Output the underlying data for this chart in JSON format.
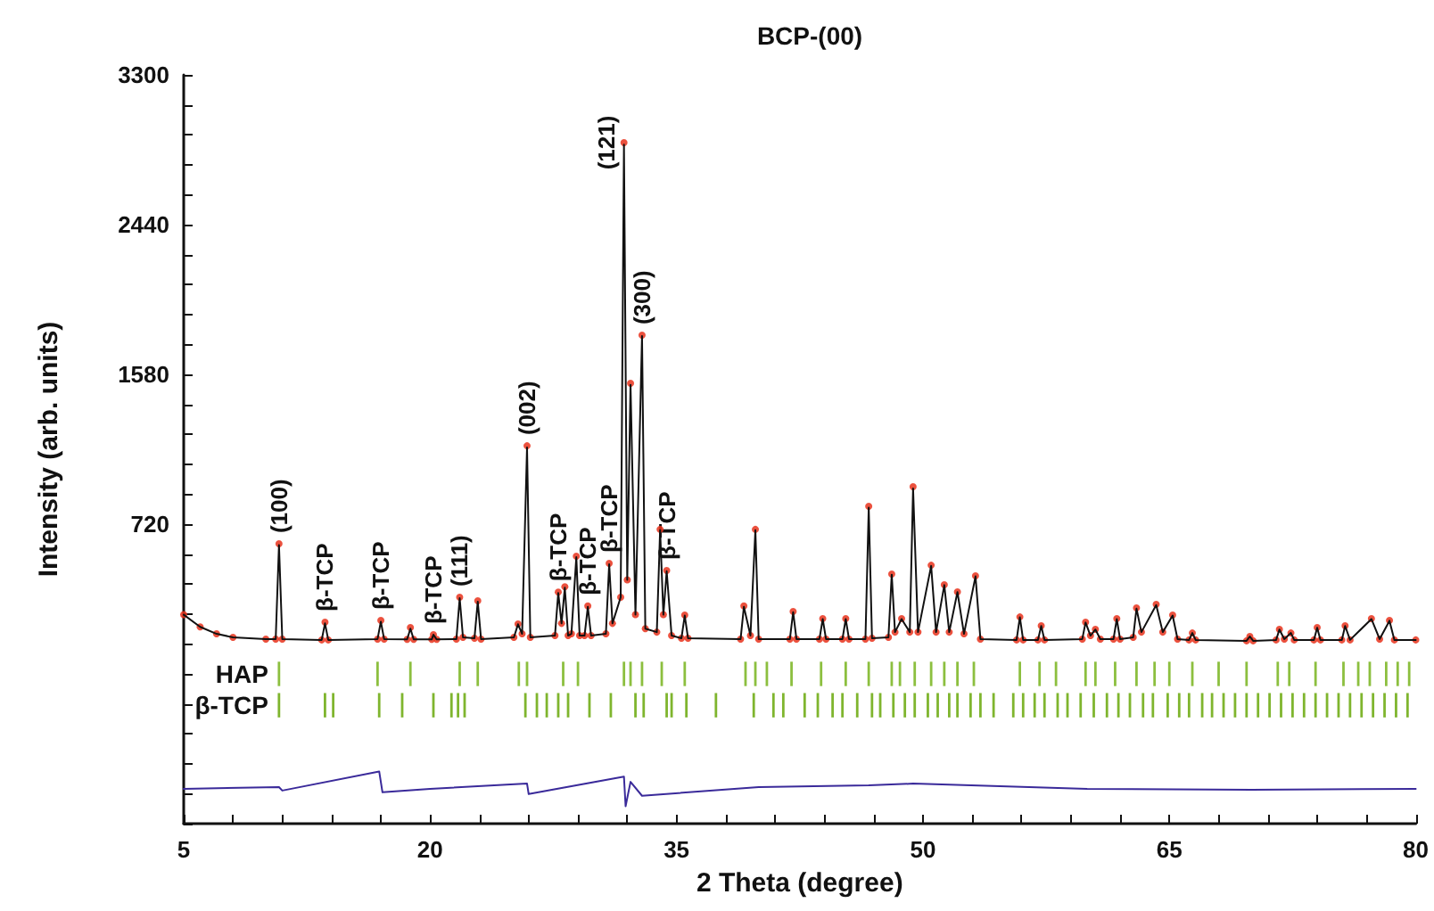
{
  "chart_data": {
    "type": "line",
    "title": "BCP-(00)",
    "xlabel": "2 Theta (degree)",
    "ylabel": "Intensity (arb. units)",
    "xlim": [
      5,
      80
    ],
    "xticks": [
      5,
      {
        "value": 8,
        "label": null
      },
      {
        "value": 11,
        "label": null
      },
      {
        "value": 14,
        "label": null
      },
      {
        "value": 17,
        "label": null
      },
      20,
      {
        "value": 23,
        "label": null
      },
      {
        "value": 26,
        "label": null
      },
      {
        "value": 29,
        "label": null
      },
      {
        "value": 32,
        "label": null
      },
      35,
      {
        "value": 38,
        "label": null
      },
      {
        "value": 41,
        "label": null
      },
      {
        "value": 44,
        "label": null
      },
      {
        "value": 47,
        "label": null
      },
      50,
      {
        "value": 53,
        "label": null
      },
      {
        "value": 56,
        "label": null
      },
      {
        "value": 59,
        "label": null
      },
      {
        "value": 62,
        "label": null
      },
      65,
      {
        "value": 68,
        "label": null
      },
      {
        "value": 71,
        "label": null
      },
      {
        "value": 74,
        "label": null
      },
      {
        "value": 77,
        "label": null
      },
      80
    ],
    "ylim": [
      -1000,
      3300
    ],
    "yticks": [
      {
        "value": -1000,
        "label": null
      },
      {
        "value": -828,
        "label": null
      },
      {
        "value": -656,
        "label": null
      },
      {
        "value": -484,
        "label": null
      },
      {
        "value": -312,
        "label": null
      },
      {
        "value": -140,
        "label": null
      },
      {
        "value": 32,
        "label": null
      },
      {
        "value": 204,
        "label": null
      },
      {
        "value": 376,
        "label": null
      },
      {
        "value": 548,
        "label": null
      },
      720,
      {
        "value": 892,
        "label": null
      },
      {
        "value": 1064,
        "label": null
      },
      {
        "value": 1236,
        "label": null
      },
      {
        "value": 1408,
        "label": null
      },
      1580,
      {
        "value": 1752,
        "label": null
      },
      {
        "value": 1924,
        "label": null
      },
      {
        "value": 2096,
        "label": null
      },
      {
        "value": 2268,
        "label": null
      },
      2440,
      {
        "value": 2612,
        "label": null
      },
      {
        "value": 2784,
        "label": null
      },
      {
        "value": 2956,
        "label": null
      },
      {
        "value": 3128,
        "label": null
      },
      3300
    ],
    "grid": false,
    "legend": "left",
    "series": [
      {
        "type": "scatter",
        "marker": "circle",
        "color": "#e8331c",
        "x": [
          5,
          6,
          7,
          8,
          10,
          10.6,
          10.8,
          11.0,
          13.4,
          13.6,
          13.8,
          16.8,
          17.0,
          17.2,
          18.6,
          18.8,
          19.0,
          20.1,
          20.2,
          20.4,
          21.6,
          21.8,
          22.0,
          22.7,
          22.9,
          23.1,
          25.1,
          25.35,
          25.6,
          25.9,
          26.1,
          27.6,
          27.8,
          28.0,
          28.2,
          28.4,
          28.6,
          28.9,
          29.1,
          29.4,
          29.6,
          29.8,
          30.7,
          30.9,
          31.1,
          31.6,
          31.8,
          32.0,
          32.2,
          32.5,
          32.9,
          33.1,
          33.8,
          34.0,
          34.2,
          34.4,
          34.7,
          35.3,
          35.5,
          35.7,
          38.9,
          39.1,
          39.5,
          39.8,
          40.0,
          41.9,
          42.1,
          42.3,
          43.7,
          43.9,
          44.1,
          45.1,
          45.3,
          45.5,
          46.5,
          46.7,
          46.9,
          47.9,
          48.1,
          48.3,
          48.7,
          49.2,
          49.4,
          49.7,
          50.5,
          50.8,
          51.3,
          51.6,
          52.1,
          52.5,
          53.2,
          53.5,
          55.7,
          55.9,
          56.1,
          57.0,
          57.2,
          57.4,
          59.7,
          59.9,
          60.2,
          60.5,
          60.8,
          61.6,
          61.8,
          62.0,
          62.8,
          63.0,
          63.3,
          64.2,
          64.6,
          65.2,
          65.5,
          66.2,
          66.4,
          66.6,
          69.7,
          69.9,
          70.1,
          71.5,
          71.7,
          72.0,
          72.4,
          72.6,
          73.8,
          74.0,
          74.2,
          75.5,
          75.7,
          76.0,
          77.3,
          77.8,
          78.4,
          78.7,
          80
        ],
        "values": [
          200,
          130,
          90,
          70,
          60,
          60,
          607,
          60,
          55,
          157,
          55,
          60,
          167,
          60,
          58,
          126,
          58,
          58,
          85,
          58,
          60,
          300,
          70,
          65,
          280,
          60,
          70,
          147,
          90,
          1170,
          70,
          80,
          330,
          150,
          360,
          80,
          90,
          536,
          80,
          80,
          250,
          80,
          90,
          495,
          150,
          300,
          2911,
          400,
          1529,
          200,
          1805,
          120,
          100,
          690,
          200,
          454,
          80,
          65,
          198,
          65,
          60,
          250,
          80,
          690,
          60,
          60,
          218,
          60,
          60,
          177,
          60,
          60,
          177,
          60,
          60,
          822,
          65,
          70,
          433,
          100,
          177,
          100,
          935,
          100,
          484,
          100,
          372,
          100,
          331,
          90,
          423,
          60,
          55,
          187,
          55,
          55,
          136,
          55,
          60,
          157,
          80,
          116,
          60,
          60,
          177,
          60,
          70,
          239,
          100,
          259,
          100,
          198,
          60,
          55,
          95,
          55,
          50,
          75,
          50,
          55,
          116,
          60,
          95,
          55,
          55,
          126,
          55,
          55,
          136,
          55,
          177,
          60,
          167,
          55,
          55
        ]
      },
      {
        "marker": "none",
        "color": "#111111",
        "x": [
          5,
          6,
          7,
          8,
          10,
          10.6,
          10.8,
          11.0,
          13.4,
          13.6,
          13.8,
          16.8,
          17.0,
          17.2,
          18.6,
          18.8,
          19.0,
          20.1,
          20.2,
          20.4,
          21.6,
          21.8,
          22.0,
          22.7,
          22.9,
          23.1,
          25.1,
          25.35,
          25.6,
          25.9,
          26.1,
          27.6,
          27.8,
          28.0,
          28.2,
          28.4,
          28.6,
          28.9,
          29.1,
          29.4,
          29.6,
          29.8,
          30.7,
          30.9,
          31.1,
          31.6,
          31.8,
          32.0,
          32.2,
          32.5,
          32.9,
          33.1,
          33.8,
          34.0,
          34.2,
          34.4,
          34.7,
          35.3,
          35.5,
          35.7,
          38.9,
          39.1,
          39.5,
          39.8,
          40.0,
          41.9,
          42.1,
          42.3,
          43.7,
          43.9,
          44.1,
          45.1,
          45.3,
          45.5,
          46.5,
          46.7,
          46.9,
          47.9,
          48.1,
          48.3,
          48.7,
          49.2,
          49.4,
          49.7,
          50.5,
          50.8,
          51.3,
          51.6,
          52.1,
          52.5,
          53.2,
          53.5,
          55.7,
          55.9,
          56.1,
          57.0,
          57.2,
          57.4,
          59.7,
          59.9,
          60.2,
          60.5,
          60.8,
          61.6,
          61.8,
          62.0,
          62.8,
          63.0,
          63.3,
          64.2,
          64.6,
          65.2,
          65.5,
          66.2,
          66.4,
          66.6,
          69.7,
          69.9,
          70.1,
          71.5,
          71.7,
          72.0,
          72.4,
          72.6,
          73.8,
          74.0,
          74.2,
          75.5,
          75.7,
          76.0,
          77.3,
          77.8,
          78.4,
          78.7,
          80
        ],
        "values": [
          200,
          130,
          90,
          70,
          60,
          60,
          600,
          60,
          55,
          150,
          55,
          60,
          160,
          60,
          58,
          120,
          58,
          58,
          85,
          58,
          60,
          295,
          70,
          65,
          275,
          60,
          70,
          145,
          90,
          1160,
          70,
          80,
          325,
          150,
          355,
          80,
          90,
          530,
          80,
          80,
          245,
          80,
          90,
          490,
          150,
          300,
          2900,
          400,
          1520,
          200,
          1800,
          120,
          100,
          685,
          200,
          450,
          80,
          65,
          195,
          65,
          60,
          245,
          80,
          685,
          60,
          60,
          215,
          60,
          60,
          175,
          60,
          60,
          175,
          60,
          60,
          815,
          65,
          70,
          430,
          100,
          175,
          100,
          925,
          100,
          480,
          100,
          370,
          100,
          330,
          90,
          420,
          60,
          55,
          185,
          55,
          55,
          135,
          55,
          60,
          155,
          80,
          115,
          60,
          60,
          175,
          60,
          70,
          235,
          100,
          255,
          100,
          195,
          60,
          55,
          95,
          55,
          50,
          75,
          50,
          55,
          115,
          60,
          95,
          55,
          55,
          125,
          55,
          55,
          135,
          55,
          175,
          60,
          165,
          55,
          55
        ]
      },
      {
        "marker": "none",
        "color": "#3a2a9a",
        "x": [
          5,
          10.8,
          11,
          16.9,
          17.1,
          20,
          25.9,
          26,
          31.8,
          31.9,
          32.2,
          32.9,
          40,
          46.7,
          49.4,
          60,
          70,
          80
        ],
        "values": [
          -800,
          -790,
          -810,
          -700,
          -820,
          -800,
          -770,
          -830,
          -730,
          -900,
          -760,
          -840,
          -790,
          -780,
          -770,
          -800,
          -805,
          -800
        ]
      },
      {
        "type": "bar",
        "name": "HAP",
        "color": "#8cbf3f",
        "base": [
          -210,
          -210,
          -210,
          -210,
          -210,
          -210,
          -210,
          -210,
          -210,
          -210,
          -210,
          -210,
          -210,
          -210,
          -210,
          -210,
          -210,
          -210,
          -210,
          -210,
          -210,
          -210,
          -210,
          -210,
          -210,
          -210,
          -210,
          -210,
          -210,
          -210,
          -210,
          -210,
          -210,
          -210,
          -210,
          -210,
          -210,
          -210,
          -210,
          -210,
          -210,
          -210,
          -210,
          -210,
          -210,
          -210,
          -210,
          -210,
          -210
        ],
        "x": [
          10.8,
          16.8,
          18.8,
          21.8,
          22.9,
          25.4,
          25.9,
          28.1,
          29.0,
          31.8,
          32.2,
          32.9,
          34.1,
          35.5,
          39.2,
          39.8,
          40.5,
          42.0,
          43.8,
          45.3,
          46.7,
          48.1,
          48.6,
          49.5,
          50.5,
          51.3,
          52.1,
          53.1,
          55.9,
          57.1,
          58.1,
          59.9,
          60.5,
          61.7,
          63.0,
          64.1,
          65.0,
          66.4,
          68.0,
          69.7,
          71.6,
          72.3,
          73.9,
          75.6,
          76.5,
          77.2,
          78.2,
          78.9,
          79.6
        ],
        "values": [
          140,
          140,
          140,
          140,
          140,
          140,
          140,
          140,
          140,
          140,
          140,
          140,
          140,
          140,
          140,
          140,
          140,
          140,
          140,
          140,
          140,
          140,
          140,
          140,
          140,
          140,
          140,
          140,
          140,
          140,
          140,
          140,
          140,
          140,
          140,
          140,
          140,
          140,
          140,
          140,
          140,
          140,
          140,
          140,
          140,
          140,
          140,
          140,
          140
        ]
      },
      {
        "type": "bar",
        "name": "β-TCP",
        "color": "#7fb52e",
        "base": [
          -390,
          -390,
          -390,
          -390,
          -390,
          -390,
          -390,
          -390,
          -390,
          -390,
          -390,
          -390,
          -390,
          -390,
          -390,
          -390,
          -390,
          -390,
          -390,
          -390,
          -390,
          -390,
          -390,
          -390,
          -390,
          -390,
          -390,
          -390,
          -390,
          -390,
          -390,
          -390,
          -390,
          -390,
          -390,
          -390,
          -390,
          -390,
          -390,
          -390,
          -390,
          -390,
          -390,
          -390,
          -390,
          -390,
          -390,
          -390,
          -390,
          -390,
          -390,
          -390,
          -390,
          -390,
          -390,
          -390,
          -390,
          -390,
          -390,
          -390,
          -390,
          -390,
          -390,
          -390,
          -390,
          -390,
          -390,
          -390,
          -390,
          -390,
          -390,
          -390,
          -390,
          -390,
          -390,
          -390,
          -390
        ],
        "x": [
          10.8,
          13.6,
          14.1,
          16.9,
          18.3,
          20.2,
          21.3,
          21.7,
          22.1,
          25.8,
          26.5,
          27.1,
          27.8,
          28.4,
          29.7,
          31.0,
          32.5,
          33.0,
          34.4,
          34.7,
          35.6,
          37.4,
          39.7,
          40.9,
          41.5,
          42.8,
          43.6,
          44.5,
          45.1,
          46.0,
          46.9,
          47.4,
          48.2,
          48.9,
          49.5,
          50.3,
          50.9,
          51.6,
          52.1,
          52.9,
          53.5,
          54.3,
          55.5,
          56.1,
          56.8,
          57.4,
          58.2,
          58.8,
          59.6,
          60.4,
          61.2,
          61.9,
          62.6,
          63.4,
          64.0,
          64.9,
          65.6,
          66.2,
          67.0,
          67.6,
          68.3,
          69.0,
          69.7,
          70.4,
          71.1,
          71.8,
          72.5,
          73.2,
          73.9,
          74.6,
          75.3,
          76.0,
          76.7,
          77.4,
          78.1,
          78.8,
          79.5
        ],
        "values": [
          140,
          140,
          140,
          140,
          140,
          140,
          140,
          140,
          140,
          140,
          140,
          140,
          140,
          140,
          140,
          140,
          140,
          140,
          140,
          140,
          140,
          140,
          140,
          140,
          140,
          140,
          140,
          140,
          140,
          140,
          140,
          140,
          140,
          140,
          140,
          140,
          140,
          140,
          140,
          140,
          140,
          140,
          140,
          140,
          140,
          140,
          140,
          140,
          140,
          140,
          140,
          140,
          140,
          140,
          140,
          140,
          140,
          140,
          140,
          140,
          140,
          140,
          140,
          140,
          140,
          140,
          140,
          140,
          140,
          140,
          140,
          140,
          140,
          140,
          140,
          140,
          140
        ]
      }
    ],
    "annotations": [
      {
        "text": "(100)",
        "x": 10.8,
        "y": 607
      },
      {
        "text": "β-TCP",
        "x": 13.6,
        "y": 157
      },
      {
        "text": "β-TCP",
        "x": 17.0,
        "y": 167
      },
      {
        "text": "β-TCP",
        "x": 20.2,
        "y": 85
      },
      {
        "text": "(111)",
        "x": 21.8,
        "y": 300
      },
      {
        "text": "(002)",
        "x": 25.9,
        "y": 1170
      },
      {
        "text": "β-TCP",
        "x": 27.8,
        "y": 330
      },
      {
        "text": "β-TCP",
        "x": 29.6,
        "y": 250
      },
      {
        "text": "β-TCP",
        "x": 30.9,
        "y": 495
      },
      {
        "text": "(121)",
        "x": 31.8,
        "y": 2911
      },
      {
        "text": "(300)",
        "x": 32.9,
        "y": 1805
      },
      {
        "text": "β-TCP",
        "x": 34.4,
        "y": 454
      }
    ]
  }
}
